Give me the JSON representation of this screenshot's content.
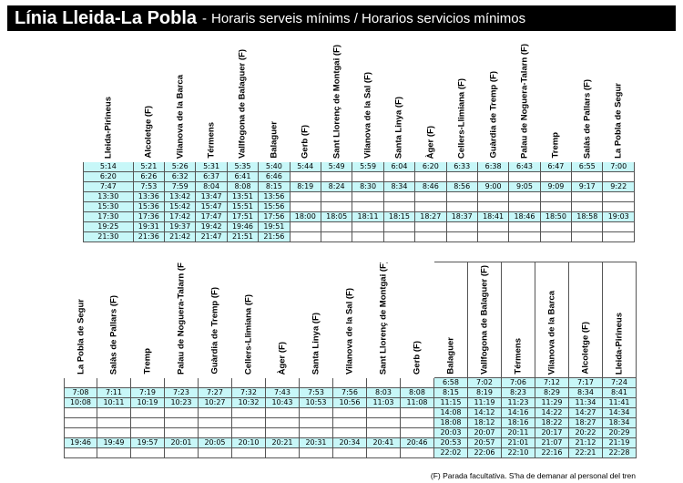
{
  "header": {
    "title": "Línia Lleida-La Pobla",
    "separator": "-",
    "subtitle": "Horaris serveis mínims / Horarios servicios mínimos"
  },
  "table1": {
    "stations": [
      "Lleida-Pirineus",
      "Alcoletge (F)",
      "Vilanova de la Barca",
      "Térmens",
      "Vallfogona de Balaguer (F)",
      "Balaguer",
      "Gerb (F)",
      "Sant Llorenç de Montgai (F)",
      "Vilanova de la Sal (F)",
      "Santa Linya (F)",
      "Àger (F)",
      "Cellers-Llimiana (F)",
      "Guàrdia de Tremp (F)",
      "Palau de Noguera-Talarn (F)",
      "Tremp",
      "Salàs de Pallars (F)",
      "La Pobla de Segur"
    ],
    "rows": [
      [
        "5:14",
        "5:21",
        "5:26",
        "5:31",
        "5:35",
        "5:40",
        "5:44",
        "5:49",
        "5:59",
        "6:04",
        "6:20",
        "6:33",
        "6:38",
        "6:43",
        "6:47",
        "6:55",
        "7:00"
      ],
      [
        "6:20",
        "6:26",
        "6:32",
        "6:37",
        "6:41",
        "6:46",
        "",
        "",
        "",
        "",
        "",
        "",
        "",
        "",
        "",
        "",
        ""
      ],
      [
        "7:47",
        "7:53",
        "7:59",
        "8:04",
        "8:08",
        "8:15",
        "8:19",
        "8:24",
        "8:30",
        "8:34",
        "8:46",
        "8:56",
        "9:00",
        "9:05",
        "9:09",
        "9:17",
        "9:22"
      ],
      [
        "13:30",
        "13:36",
        "13:42",
        "13:47",
        "13:51",
        "13:56",
        "",
        "",
        "",
        "",
        "",
        "",
        "",
        "",
        "",
        "",
        ""
      ],
      [
        "15:30",
        "15:36",
        "15:42",
        "15:47",
        "15:51",
        "15:56",
        "",
        "",
        "",
        "",
        "",
        "",
        "",
        "",
        "",
        "",
        ""
      ],
      [
        "17:30",
        "17:36",
        "17:42",
        "17:47",
        "17:51",
        "17:56",
        "18:00",
        "18:05",
        "18:11",
        "18:15",
        "18:27",
        "18:37",
        "18:41",
        "18:46",
        "18:50",
        "18:58",
        "19:03"
      ],
      [
        "19:25",
        "19:31",
        "19:37",
        "19:42",
        "19:46",
        "19:51",
        "",
        "",
        "",
        "",
        "",
        "",
        "",
        "",
        "",
        "",
        ""
      ],
      [
        "21:30",
        "21:36",
        "21:42",
        "21:47",
        "21:51",
        "21:56",
        "",
        "",
        "",
        "",
        "",
        "",
        "",
        "",
        "",
        "",
        ""
      ]
    ]
  },
  "table2": {
    "stations": [
      "La Pobla de Segur",
      "Salàs de Pallars (F)",
      "Tremp",
      "Palau de Noguera-Talarn (F)",
      "Guàrdia de Tremp (F)",
      "Cellers-Llimiana (F)",
      "Àger (F)",
      "Santa Linya (F)",
      "Vilanova de la Sal (F)",
      "Sant Llorenç de Montgai (F)",
      "Gerb (F)",
      "Balaguer",
      "Vallfogona de Balaguer (F)",
      "Térmens",
      "Vilanova de la Barca",
      "Alcoletge (F)",
      "Lleida-Pirineus"
    ],
    "rows": [
      [
        "",
        "",
        "",
        "",
        "",
        "",
        "",
        "",
        "",
        "",
        "",
        "6:58",
        "7:02",
        "7:06",
        "7:12",
        "7:17",
        "7:24"
      ],
      [
        "7:08",
        "7:11",
        "7:19",
        "7:23",
        "7:27",
        "7:32",
        "7:43",
        "7:53",
        "7:56",
        "8:03",
        "8:08",
        "8:15",
        "8:19",
        "8:23",
        "8:29",
        "8:34",
        "8:41"
      ],
      [
        "10:08",
        "10:11",
        "10:19",
        "10:23",
        "10:27",
        "10:32",
        "10:43",
        "10:53",
        "10:56",
        "11:03",
        "11:08",
        "11:15",
        "11:19",
        "11:23",
        "11:29",
        "11:34",
        "11:41"
      ],
      [
        "",
        "",
        "",
        "",
        "",
        "",
        "",
        "",
        "",
        "",
        "",
        "14:08",
        "14:12",
        "14:16",
        "14:22",
        "14:27",
        "14:34"
      ],
      [
        "",
        "",
        "",
        "",
        "",
        "",
        "",
        "",
        "",
        "",
        "",
        "18:08",
        "18:12",
        "18:16",
        "18:22",
        "18:27",
        "18:34"
      ],
      [
        "",
        "",
        "",
        "",
        "",
        "",
        "",
        "",
        "",
        "",
        "",
        "20:03",
        "20:07",
        "20:11",
        "20:17",
        "20:22",
        "20:29"
      ],
      [
        "19:46",
        "19:49",
        "19:57",
        "20:01",
        "20:05",
        "20:10",
        "20:21",
        "20:31",
        "20:34",
        "20:41",
        "20:46",
        "20:53",
        "20:57",
        "21:01",
        "21:07",
        "21:12",
        "21:19"
      ],
      [
        "",
        "",
        "",
        "",
        "",
        "",
        "",
        "",
        "",
        "",
        "",
        "22:02",
        "22:06",
        "22:10",
        "22:16",
        "22:21",
        "22:28"
      ]
    ]
  },
  "footnote": "(F) Parada facultativa. S'ha de demanar al personal del tren",
  "colors": {
    "cyan_fill": "#c7f7f8",
    "title_bar": "#000000"
  }
}
